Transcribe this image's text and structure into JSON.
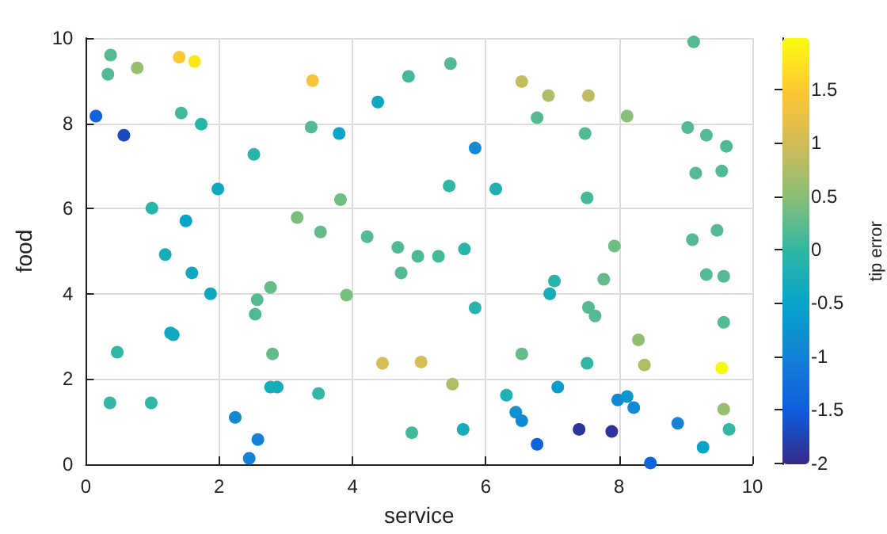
{
  "chart_data": {
    "type": "scatter",
    "xlabel": "service",
    "ylabel": "food",
    "clabel": "tip error",
    "marker": "circle",
    "grid": true,
    "xlim": [
      0,
      10
    ],
    "ylim": [
      0,
      10
    ],
    "xticks": [
      0,
      2,
      4,
      6,
      8,
      10
    ],
    "yticks": [
      0,
      2,
      4,
      6,
      8,
      10
    ],
    "clim": [
      -2.01,
      1.98
    ],
    "cticks": [
      -2,
      -1.5,
      -1,
      -0.5,
      0,
      0.5,
      1,
      1.5
    ],
    "x": [
      0.37,
      0.33,
      0.77,
      1.4,
      1.63,
      3.4,
      4.84,
      5.47,
      9.12,
      6.54,
      6.94,
      7.54,
      6.77,
      8.12,
      7.49,
      9.03,
      9.31,
      9.61,
      5.84,
      5.45,
      6.15,
      7.52,
      9.15,
      9.54,
      7.93,
      9.1,
      9.47,
      5.68,
      4.98,
      5.29,
      0.15,
      0.57,
      1.43,
      1.73,
      4.38,
      3.38,
      3.8,
      2.52,
      1.98,
      0.99,
      1.5,
      3.17,
      3.82,
      3.52,
      4.22,
      4.68,
      1.19,
      1.59,
      1.87,
      2.77,
      2.57,
      2.54,
      3.91,
      4.73,
      1.27,
      1.31,
      0.47,
      2.8,
      4.45,
      5.03,
      0.36,
      0.98,
      2.77,
      2.87,
      3.49,
      2.24,
      2.58,
      2.45,
      4.89,
      9.31,
      9.57,
      7.03,
      6.96,
      7.77,
      5.84,
      7.54,
      7.64,
      9.57,
      8.29,
      6.54,
      7.52,
      8.38,
      9.54,
      5.5,
      6.31,
      7.08,
      7.98,
      8.12,
      8.22,
      6.45,
      6.54,
      9.57,
      8.88,
      9.65,
      5.66,
      7.4,
      7.89,
      6.77,
      9.26,
      8.47
    ],
    "values": [
      9.6,
      9.15,
      9.3,
      9.55,
      9.45,
      9.0,
      9.1,
      9.4,
      9.91,
      8.98,
      8.65,
      8.65,
      8.13,
      8.17,
      7.76,
      7.9,
      7.72,
      7.46,
      7.42,
      6.53,
      6.46,
      6.25,
      6.83,
      6.88,
      5.12,
      5.27,
      5.49,
      5.05,
      4.88,
      4.88,
      8.17,
      7.72,
      8.24,
      7.98,
      8.5,
      7.91,
      7.76,
      7.27,
      6.46,
      6.01,
      5.71,
      5.79,
      6.21,
      5.45,
      5.34,
      5.09,
      4.92,
      4.49,
      4.0,
      4.15,
      3.86,
      3.52,
      3.97,
      4.49,
      3.08,
      3.04,
      2.63,
      2.59,
      2.37,
      2.4,
      1.44,
      1.44,
      1.81,
      1.81,
      1.66,
      1.1,
      0.58,
      0.14,
      0.74,
      4.45,
      4.41,
      4.3,
      4.0,
      4.34,
      3.67,
      3.68,
      3.48,
      3.33,
      2.92,
      2.59,
      2.37,
      2.33,
      2.26,
      1.88,
      1.62,
      1.81,
      1.51,
      1.59,
      1.33,
      1.22,
      1.02,
      1.29,
      0.96,
      0.82,
      0.82,
      0.82,
      0.77,
      0.47,
      0.4,
      0.03
    ],
    "cvalues": [
      0.2,
      0.2,
      0.6,
      1.5,
      1.8,
      1.4,
      0.1,
      0.2,
      0.2,
      0.9,
      0.75,
      0.85,
      0.2,
      0.5,
      0.2,
      0.2,
      0.2,
      0.15,
      -0.9,
      0.0,
      -0.2,
      0.1,
      0.2,
      0.2,
      0.35,
      0.2,
      0.2,
      -0.1,
      0.15,
      0.1,
      -1.4,
      -1.7,
      0.1,
      -0.1,
      -0.4,
      0.2,
      -0.5,
      -0.1,
      -0.4,
      -0.1,
      -0.5,
      0.4,
      0.35,
      0.3,
      0.2,
      0.15,
      -0.3,
      -0.4,
      -0.4,
      0.3,
      0.2,
      0.15,
      0.4,
      0.2,
      -0.4,
      -0.4,
      0.0,
      0.3,
      1.05,
      1.05,
      0.0,
      0.0,
      -0.3,
      -0.3,
      0.0,
      -0.9,
      -1.0,
      -1.0,
      0.1,
      0.2,
      0.2,
      -0.1,
      -0.3,
      0.3,
      -0.1,
      0.2,
      0.2,
      0.2,
      0.55,
      0.3,
      0.0,
      0.75,
      1.95,
      0.75,
      -0.2,
      -0.6,
      -0.9,
      -0.7,
      -0.9,
      -0.8,
      -0.9,
      0.6,
      -1.0,
      0.0,
      -0.3,
      -1.9,
      -1.9,
      -1.4,
      -0.5,
      -1.4
    ]
  }
}
